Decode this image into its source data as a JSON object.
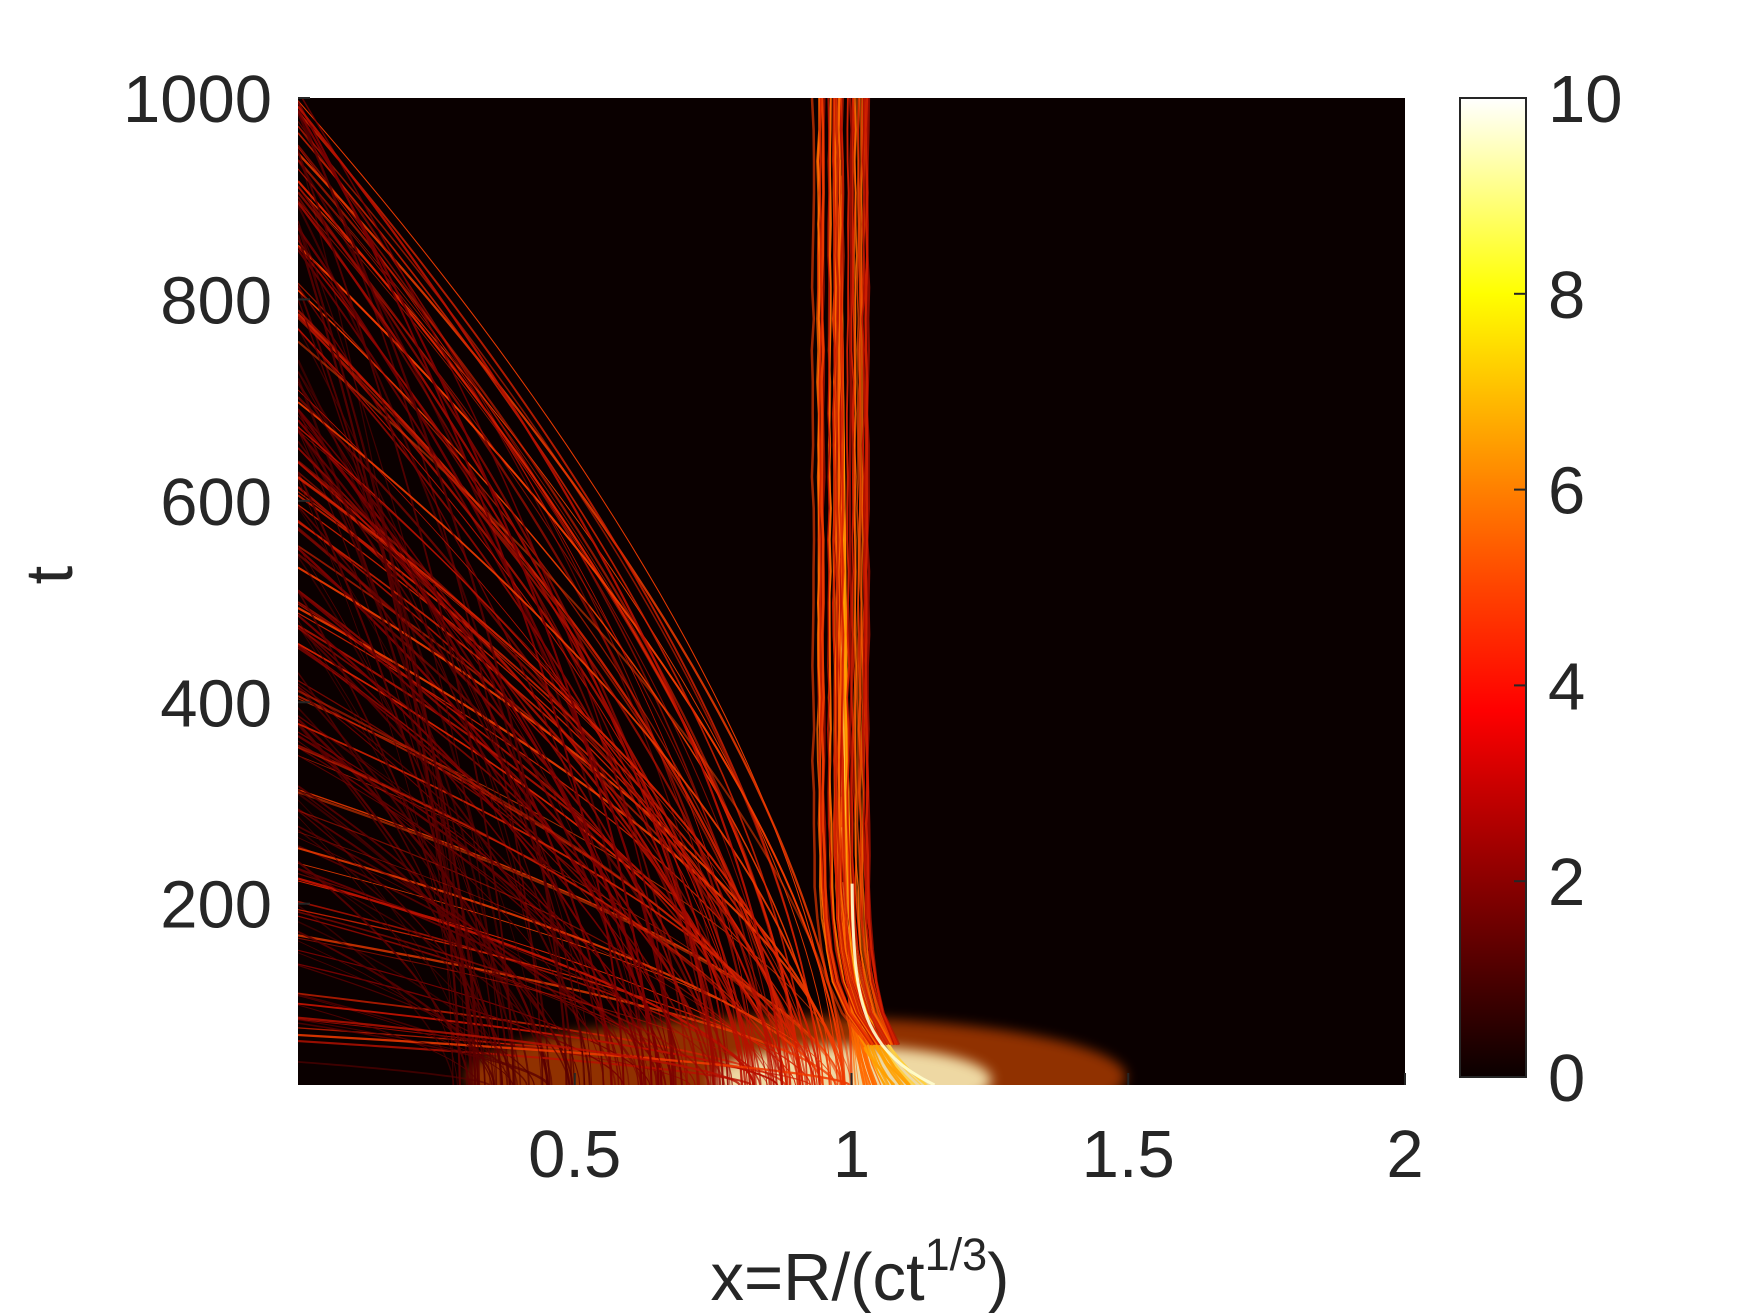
{
  "chart_data": {
    "type": "heatmap",
    "title": "",
    "xlabel": {
      "base": "x=R/(ct",
      "sup": "1/3",
      "close": ")"
    },
    "ylabel": "t",
    "xlim": [
      0,
      2
    ],
    "ylim": [
      20,
      1000
    ],
    "x_ticks": [
      {
        "value": 0.5,
        "label": "0.5"
      },
      {
        "value": 1,
        "label": "1"
      },
      {
        "value": 1.5,
        "label": "1.5"
      },
      {
        "value": 2,
        "label": "2"
      }
    ],
    "y_ticks": [
      {
        "value": 200,
        "label": "200"
      },
      {
        "value": 400,
        "label": "400"
      },
      {
        "value": 600,
        "label": "600"
      },
      {
        "value": 800,
        "label": "800"
      },
      {
        "value": 1000,
        "label": "1000"
      }
    ],
    "colorbar": {
      "colormap": "hot",
      "min": 0,
      "max": 10,
      "ticks": [
        {
          "value": 0,
          "label": "0"
        },
        {
          "value": 2,
          "label": "2"
        },
        {
          "value": 4,
          "label": "4"
        },
        {
          "value": 6,
          "label": "6"
        },
        {
          "value": 8,
          "label": "8"
        },
        {
          "value": 10,
          "label": "10"
        }
      ]
    },
    "field_description": {
      "front_x_long_time": 1.0,
      "front_x_initial": 1.15,
      "background_value": 0
    }
  }
}
